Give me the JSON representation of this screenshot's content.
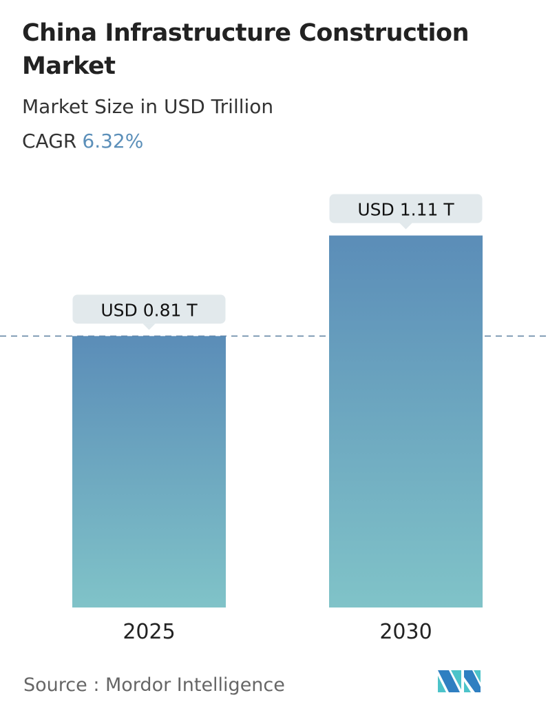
{
  "title": "China Infrastructure Construction Market",
  "subtitle": "Market Size in USD Trillion",
  "cagr_label": "CAGR",
  "cagr_value": "6.32%",
  "source": "Source :  Mordor Intelligence",
  "colors": {
    "bar_top": "#5b8db8",
    "bar_bottom": "#80c3c8",
    "label_bg": "#e2e9ec",
    "accent": "#5b8fb9"
  },
  "chart_data": {
    "type": "bar",
    "categories": [
      "2025",
      "2030"
    ],
    "values": [
      0.81,
      1.11
    ],
    "data_labels": [
      "USD 0.81 T",
      "USD 1.11 T"
    ],
    "ylabel": "",
    "ylim": [
      0,
      1.11
    ],
    "grid": false,
    "reference_line": 0.81
  }
}
